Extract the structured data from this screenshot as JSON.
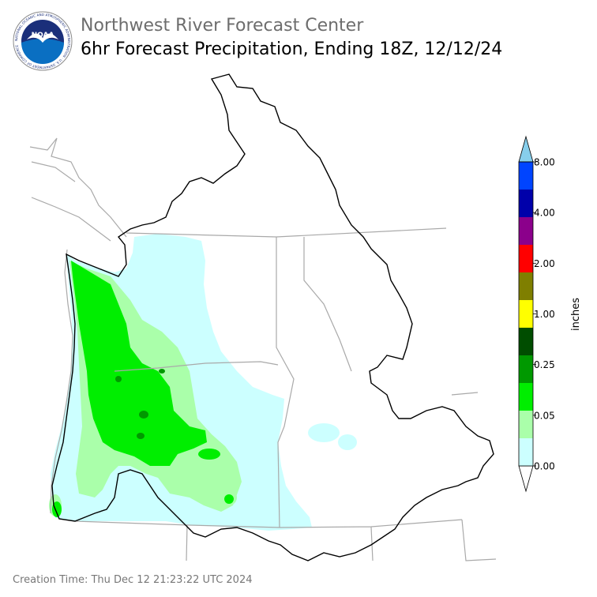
{
  "header": {
    "org": "Northwest River Forecast Center",
    "product": "6hr Forecast Precipitation, Ending 18Z, 12/12/24"
  },
  "logo": {
    "text": "NOAA",
    "ring_text": "NATIONAL OCEANIC AND ATMOSPHERIC ADMINISTRATION · U.S. DEPARTMENT OF COMMERCE",
    "colors": {
      "outer": "#ffffff",
      "blue": "#0a6fc2",
      "navy": "#1b2f7a",
      "gull": "#ffffff"
    }
  },
  "colorbar": {
    "units": "inches",
    "tick_labels": [
      "0.00",
      "0.05",
      "0.25",
      "1.00",
      "2.00",
      "4.00",
      "8.00"
    ],
    "bands": [
      "#ffffff",
      "#ccffff",
      "#aaffaa",
      "#00ee00",
      "#009900",
      "#004d00",
      "#ffff00",
      "#7f7f00",
      "#ff0000",
      "#8b008b",
      "#0000aa",
      "#0044ff",
      "#87ceeb"
    ]
  },
  "map": {
    "colors": {
      "basin_outline": "#000000",
      "state_lines": "#a9a9a9",
      "coast_lines": "#a9a9a9"
    },
    "legend_classes": {
      "light": "#ccffff",
      "moderate": "#aaffaa",
      "heavy": "#00ee00",
      "core": "#009900"
    }
  },
  "footer": {
    "creation_time": "Creation Time: Thu Dec 12 21:23:22 UTC 2024"
  }
}
